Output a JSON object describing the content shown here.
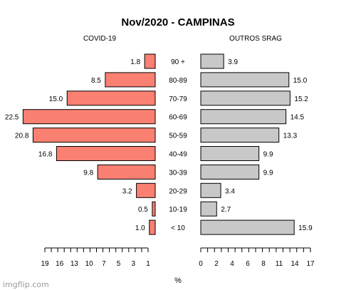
{
  "chart_data": {
    "type": "bar",
    "title": "Nov/2020 - CAMPINAS",
    "xlabel": "%",
    "categories": [
      "90 +",
      "80-89",
      "70-79",
      "60-69",
      "50-59",
      "40-49",
      "30-39",
      "20-29",
      "10-19",
      "< 10"
    ],
    "series": [
      {
        "name": "COVID-19",
        "color": "#fa8072",
        "values": [
          1.8,
          8.5,
          15.0,
          22.5,
          20.8,
          16.8,
          9.8,
          3.2,
          0.5,
          1.0
        ],
        "labels": [
          "1.8",
          "8.5",
          "15.0",
          "22.5",
          "20.8",
          "16.8",
          "9.8",
          "3.2",
          "0.5",
          "1.0"
        ],
        "axis_ticks": [
          "19",
          "16",
          "13",
          "10",
          "7",
          "5",
          "3",
          "1"
        ]
      },
      {
        "name": "OUTROS SRAG",
        "color": "#c8c8c8",
        "values": [
          3.9,
          15.0,
          15.2,
          14.5,
          13.3,
          9.9,
          9.9,
          3.4,
          2.7,
          15.9
        ],
        "labels": [
          "3.9",
          "15.0",
          "15.2",
          "14.5",
          "13.3",
          "9.9",
          "9.9",
          "3.4",
          "2.7",
          "15.9"
        ],
        "axis_ticks": [
          "0",
          "2",
          "4",
          "6",
          "8",
          "11",
          "14",
          "17"
        ]
      }
    ]
  },
  "watermark": "imgflip.com"
}
